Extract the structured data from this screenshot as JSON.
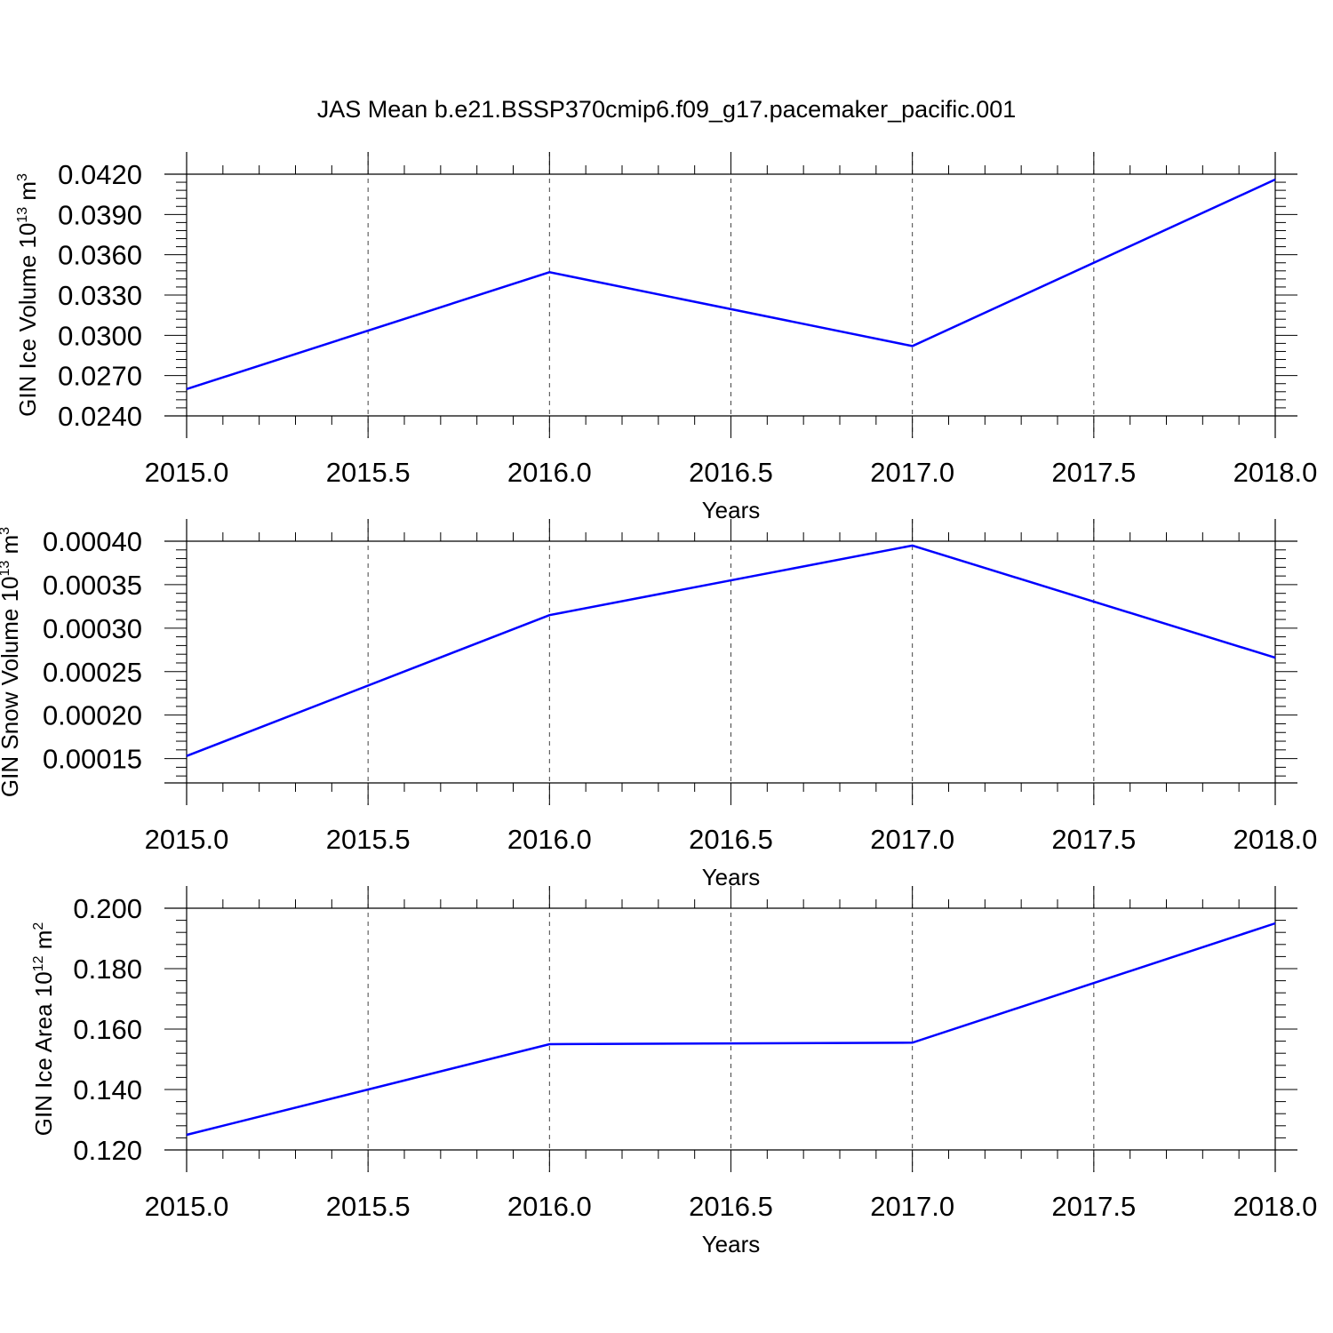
{
  "title": "JAS Mean b.e21.BSSP370cmip6.f09_g17.pacemaker_pacific.001",
  "line_color": "#0000ff",
  "chart_data": [
    {
      "type": "line",
      "title": "JAS Mean b.e21.BSSP370cmip6.f09_g17.pacemaker_pacific.001",
      "ylabel": "GIN Ice Volume 10",
      "ylabel_exp": "13",
      "ylabel_unit": " m",
      "ylabel_unit_exp": "3",
      "xlabel": "Years",
      "x": [
        2015.0,
        2016.0,
        2017.0,
        2018.0
      ],
      "y": [
        0.026,
        0.0347,
        0.0292,
        0.0416
      ],
      "xlim": [
        2015.0,
        2018.0
      ],
      "ylim": [
        0.024,
        0.042
      ],
      "xticks": [
        "2015.0",
        "2015.5",
        "2016.0",
        "2016.5",
        "2017.0",
        "2017.5",
        "2018.0"
      ],
      "yticks": [
        "0.0240",
        "0.0270",
        "0.0300",
        "0.0330",
        "0.0360",
        "0.0390",
        "0.0420"
      ],
      "grid": "vertical dashed"
    },
    {
      "type": "line",
      "ylabel": "GIN Snow Volume 10",
      "ylabel_exp": "13",
      "ylabel_unit": " m",
      "ylabel_unit_exp": "3",
      "xlabel": "Years",
      "x": [
        2015.0,
        2016.0,
        2017.0,
        2018.0
      ],
      "y": [
        0.000153,
        0.000315,
        0.000395,
        0.000266
      ],
      "xlim": [
        2015.0,
        2018.0
      ],
      "ylim": [
        0.000122,
        0.0004
      ],
      "xticks": [
        "2015.0",
        "2015.5",
        "2016.0",
        "2016.5",
        "2017.0",
        "2017.5",
        "2018.0"
      ],
      "yticks": [
        "0.00015",
        "0.00020",
        "0.00025",
        "0.00030",
        "0.00035",
        "0.00040"
      ],
      "ytick_values": [
        0.00015,
        0.0002,
        0.00025,
        0.0003,
        0.00035,
        0.0004
      ],
      "grid": "vertical dashed"
    },
    {
      "type": "line",
      "ylabel": "GIN Ice Area 10",
      "ylabel_exp": "12",
      "ylabel_unit": " m",
      "ylabel_unit_exp": "2",
      "xlabel": "Years",
      "x": [
        2015.0,
        2016.0,
        2017.0,
        2018.0
      ],
      "y": [
        0.125,
        0.155,
        0.1555,
        0.195
      ],
      "xlim": [
        2015.0,
        2018.0
      ],
      "ylim": [
        0.12,
        0.2
      ],
      "xticks": [
        "2015.0",
        "2015.5",
        "2016.0",
        "2016.5",
        "2017.0",
        "2017.5",
        "2018.0"
      ],
      "yticks": [
        "0.120",
        "0.140",
        "0.160",
        "0.180",
        "0.200"
      ],
      "ytick_values": [
        0.12,
        0.14,
        0.16,
        0.18,
        0.2
      ],
      "grid": "vertical dashed"
    }
  ]
}
